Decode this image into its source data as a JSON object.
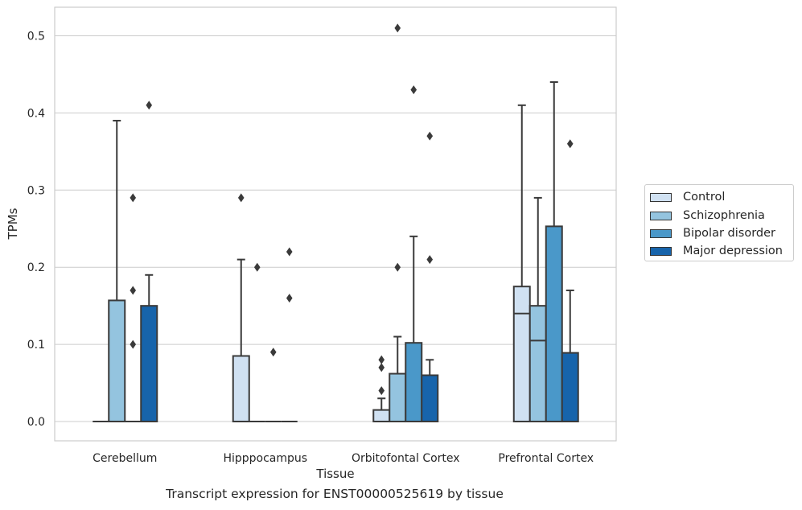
{
  "chart_data": {
    "type": "box",
    "caption": "Transcript expression for ENST00000525619 by tissue",
    "xlabel": "Tissue",
    "ylabel": "TPMs",
    "ylim": [
      -0.025,
      0.537
    ],
    "yticks": [
      "0.0",
      "0.1",
      "0.2",
      "0.3",
      "0.4",
      "0.5"
    ],
    "ytick_values": [
      0.0,
      0.1,
      0.2,
      0.3,
      0.4,
      0.5
    ],
    "grid": true,
    "legend_position": "right",
    "categories": [
      "Cerebellum",
      "Hipppocampus",
      "Orbitofontal Cortex",
      "Prefrontal Cortex"
    ],
    "series": [
      {
        "name": "Control",
        "color": "#d0e1f2",
        "boxes": [
          {
            "q1": 0,
            "median": 0,
            "q3": 0,
            "whisker_low": 0,
            "whisker_high": 0,
            "outliers": []
          },
          {
            "q1": 0,
            "median": 0,
            "q3": 0.085,
            "whisker_low": 0,
            "whisker_high": 0.21,
            "outliers": [
              0.29
            ]
          },
          {
            "q1": 0,
            "median": 0,
            "q3": 0.015,
            "whisker_low": 0,
            "whisker_high": 0.03,
            "outliers": [
              0.04,
              0.07,
              0.08
            ]
          },
          {
            "q1": 0,
            "median": 0.14,
            "q3": 0.175,
            "whisker_low": 0,
            "whisker_high": 0.41,
            "outliers": []
          }
        ]
      },
      {
        "name": "Schizophrenia",
        "color": "#94c4df",
        "boxes": [
          {
            "q1": 0,
            "median": 0,
            "q3": 0.157,
            "whisker_low": 0,
            "whisker_high": 0.39,
            "outliers": []
          },
          {
            "q1": 0,
            "median": 0,
            "q3": 0,
            "whisker_low": 0,
            "whisker_high": 0,
            "outliers": [
              0.2
            ]
          },
          {
            "q1": 0,
            "median": 0,
            "q3": 0.062,
            "whisker_low": 0,
            "whisker_high": 0.11,
            "outliers": [
              0.2,
              0.51
            ]
          },
          {
            "q1": 0,
            "median": 0.105,
            "q3": 0.15,
            "whisker_low": 0,
            "whisker_high": 0.29,
            "outliers": []
          }
        ]
      },
      {
        "name": "Bipolar disorder",
        "color": "#4a98c9",
        "boxes": [
          {
            "q1": 0,
            "median": 0,
            "q3": 0,
            "whisker_low": 0,
            "whisker_high": 0,
            "outliers": [
              0.1,
              0.17,
              0.29
            ]
          },
          {
            "q1": 0,
            "median": 0,
            "q3": 0,
            "whisker_low": 0,
            "whisker_high": 0,
            "outliers": [
              0.09
            ]
          },
          {
            "q1": 0,
            "median": 0,
            "q3": 0.102,
            "whisker_low": 0,
            "whisker_high": 0.24,
            "outliers": [
              0.43
            ]
          },
          {
            "q1": 0,
            "median": 0,
            "q3": 0.253,
            "whisker_low": 0,
            "whisker_high": 0.44,
            "outliers": []
          }
        ]
      },
      {
        "name": "Major depression",
        "color": "#1764ab",
        "boxes": [
          {
            "q1": 0,
            "median": 0,
            "q3": 0.15,
            "whisker_low": 0,
            "whisker_high": 0.19,
            "outliers": [
              0.41
            ]
          },
          {
            "q1": 0,
            "median": 0,
            "q3": 0,
            "whisker_low": 0,
            "whisker_high": 0,
            "outliers": [
              0.16,
              0.22
            ]
          },
          {
            "q1": 0,
            "median": 0,
            "q3": 0.06,
            "whisker_low": 0,
            "whisker_high": 0.08,
            "outliers": [
              0.21,
              0.37
            ]
          },
          {
            "q1": 0,
            "median": 0,
            "q3": 0.089,
            "whisker_low": 0,
            "whisker_high": 0.17,
            "outliers": [
              0.36
            ]
          }
        ]
      }
    ]
  }
}
